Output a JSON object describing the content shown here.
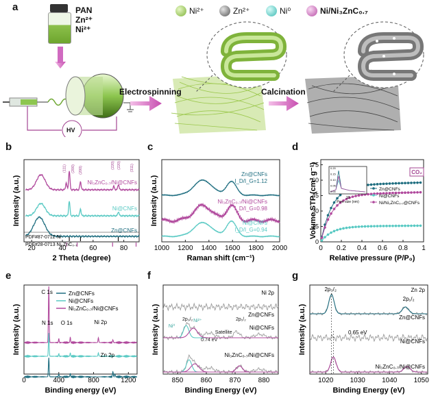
{
  "panel_a": {
    "label": "a",
    "legend": [
      "Ni²⁺",
      "Zn²⁺",
      "Ni⁰",
      "Ni/Ni₃ZnC₀.₇"
    ],
    "precursors": [
      "PAN",
      "Zn²⁺",
      "Ni²⁺"
    ],
    "hv": "HV",
    "step1": "Electrospinning",
    "step2": "Calcination"
  },
  "chart_data": [
    {
      "panel": "b",
      "type": "line",
      "xlabel": "2 Theta (degree)",
      "ylabel": "Intensity (a.u.)",
      "xlim": [
        15,
        90
      ],
      "xticks": [
        20,
        40,
        60,
        80
      ],
      "peak_labels": [
        "(111)",
        "(200)",
        "(200)",
        "(220)",
        "(220)",
        "(311)"
      ],
      "series": [
        {
          "name": "Ni₃ZnC₀.₇/Ni@CNFs",
          "color": "#b0489c",
          "peaks": [
            26,
            42.5,
            44.5,
            51.8,
            73.5,
            76.5,
            85
          ]
        },
        {
          "name": "Ni@CNFs",
          "color": "#58c9c3",
          "peaks": [
            26,
            44.5,
            51.8,
            76.5
          ]
        },
        {
          "name": "Zn@CNFs",
          "color": "#1f6e80",
          "peaks": [
            25
          ]
        }
      ],
      "references": [
        {
          "name": "PDF#87-0712 Ni",
          "positions": [
            44.5,
            51.8,
            76.4
          ]
        },
        {
          "name": "PDF#28-0713 Ni₃ZnC₀.₇",
          "positions": [
            42.7,
            49.6,
            72.7,
            88
          ]
        }
      ]
    },
    {
      "panel": "c",
      "type": "line",
      "xlabel": "Raman shift (cm⁻¹)",
      "ylabel": "Intensity (a.u.)",
      "xlim": [
        1000,
        2000
      ],
      "xticks": [
        1000,
        1200,
        1400,
        1600,
        1800,
        2000
      ],
      "series": [
        {
          "name": "Zn@CNFs",
          "ratio": "I_D/I_G=1.12",
          "color": "#1f6e80"
        },
        {
          "name": "Ni₃ZnC₀.₇/Ni@CNFs",
          "ratio": "I_D/I_G=0.98",
          "color": "#b0489c"
        },
        {
          "name": "Ni@CNFs",
          "ratio": "I_D/I_G=0.94",
          "color": "#58c9c3"
        }
      ]
    },
    {
      "panel": "d",
      "type": "line",
      "xlabel": "Relative pressure (P/P₀)",
      "ylabel": "Volume STP (cm³ g⁻¹)",
      "xlim": [
        0,
        1.0
      ],
      "ylim": [
        0,
        80
      ],
      "xticks": [
        0.0,
        0.2,
        0.4,
        0.6,
        0.8,
        1.0
      ],
      "yticks": [
        0,
        15,
        30,
        45,
        60,
        75
      ],
      "gas": "CO₂",
      "inset": {
        "xlabel": "Pore size (nm)",
        "xtick": "10",
        "yticks": [
          "0.00",
          "0.05",
          "0.10",
          "0.15",
          "0.20"
        ]
      },
      "series": [
        {
          "name": "Zn@CNFs",
          "color": "#1f6e80",
          "plateau": 55
        },
        {
          "name": "Ni@CNFs",
          "color": "#58c9c3",
          "plateau": 15
        },
        {
          "name": "Ni/Ni₃ZnC₀.₇@CNFs",
          "color": "#b0489c",
          "plateau": 46
        }
      ]
    },
    {
      "panel": "e",
      "type": "line",
      "xlabel": "Binding energy (eV)",
      "ylabel": "Intensity (a.u.)",
      "xlim": [
        0,
        1300
      ],
      "xticks": [
        0,
        400,
        800,
        1200
      ],
      "annotations": [
        "C 1s",
        "N 1s",
        "O 1s",
        "Ni 2p",
        "Zn 2p"
      ],
      "series": [
        {
          "name": "Zn@CNFs",
          "color": "#1f6e80"
        },
        {
          "name": "Ni@CNFs",
          "color": "#58c9c3"
        },
        {
          "name": "Ni₃ZnC₀.₇/Ni@CNFs",
          "color": "#b0489c"
        }
      ]
    },
    {
      "panel": "f",
      "type": "line",
      "title": "Ni 2p",
      "xlabel": "Binding Energy (eV)",
      "ylabel": "Intensity (a.u.)",
      "xlim": [
        845,
        885
      ],
      "xticks": [
        850,
        860,
        870,
        880
      ],
      "annotations": [
        "2p₃/₂",
        "2p₁/₂",
        "Ni²⁺",
        "Ni⁰",
        "Satellite",
        "0.74 eV"
      ],
      "series": [
        {
          "name": "Zn@CNFs"
        },
        {
          "name": "Ni@CNFs"
        },
        {
          "name": "Ni₃ZnC₀.₇/Ni@CNFs"
        }
      ]
    },
    {
      "panel": "g",
      "type": "line",
      "title": "Zn 2p",
      "xlabel": "Binding Energy (eV)",
      "ylabel": "Intensity (a.u.)",
      "xlim": [
        1015,
        1052
      ],
      "xticks": [
        1020,
        1030,
        1040,
        1050
      ],
      "annotations": [
        "2p₃/₂",
        "2p₁/₂",
        "0.65 eV"
      ],
      "series": [
        {
          "name": "Zn@CNFs"
        },
        {
          "name": "Ni@CNFs"
        },
        {
          "name": "Ni₃ZnC₀.₇/Ni@CNFs"
        }
      ]
    }
  ]
}
